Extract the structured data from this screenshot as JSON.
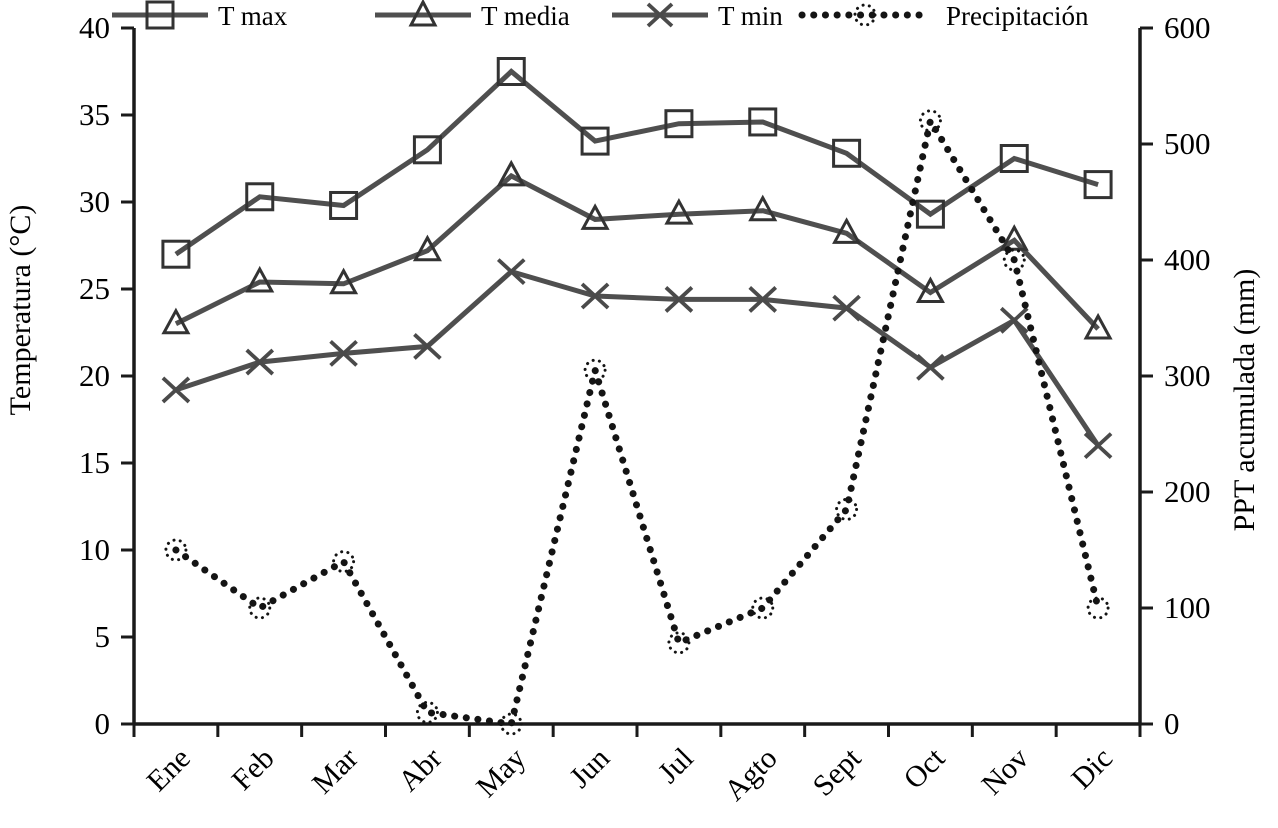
{
  "chart_data": {
    "type": "line",
    "title": "",
    "categories": [
      "Ene",
      "Feb",
      "Mar",
      "Abr",
      "May",
      "Jun",
      "Jul",
      "Agto",
      "Sept",
      "Oct",
      "Nov",
      "Dic"
    ],
    "series": [
      {
        "name": "T max",
        "axis": "left",
        "marker": "square",
        "line_style": "solid",
        "values": [
          27.0,
          30.3,
          29.8,
          33.0,
          37.5,
          33.5,
          34.5,
          34.6,
          32.8,
          29.3,
          32.5,
          31.0
        ]
      },
      {
        "name": "T media",
        "axis": "left",
        "marker": "triangle",
        "line_style": "solid",
        "values": [
          23.0,
          25.4,
          25.3,
          27.2,
          31.5,
          29.0,
          29.3,
          29.5,
          28.2,
          24.8,
          27.8,
          22.7
        ]
      },
      {
        "name": "T min",
        "axis": "left",
        "marker": "x",
        "line_style": "solid",
        "values": [
          19.2,
          20.8,
          21.3,
          21.7,
          26.0,
          24.6,
          24.4,
          24.4,
          23.9,
          20.5,
          23.2,
          16.0
        ]
      },
      {
        "name": "Precipitación",
        "axis": "right",
        "marker": "dotted_circle",
        "line_style": "dotted",
        "values": [
          150,
          100,
          140,
          10,
          0,
          305,
          70,
          100,
          185,
          520,
          400,
          100
        ]
      }
    ],
    "left_axis": {
      "label": "Temperatura (°C)",
      "min": 0,
      "max": 40,
      "ticks": [
        0,
        5,
        10,
        15,
        20,
        25,
        30,
        35,
        40
      ]
    },
    "right_axis": {
      "label": "PPT acumulada (mm)",
      "min": 0,
      "max": 600,
      "ticks": [
        0,
        100,
        200,
        300,
        400,
        500,
        600
      ]
    },
    "x_axis": {
      "grid": false,
      "tick_style": "boundary"
    },
    "legend": {
      "position": "top"
    },
    "colors": {
      "temperature_line": "#4f4f4f",
      "marker_outline": "#333333",
      "precipitation": "#141414",
      "axis": "#1a1a1a",
      "text": "#000000",
      "background": "#ffffff"
    }
  }
}
